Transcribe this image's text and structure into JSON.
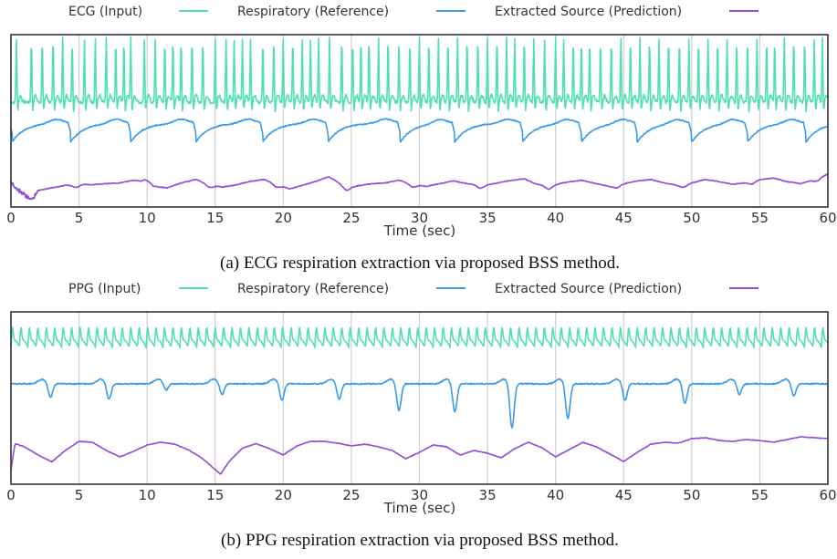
{
  "colors": {
    "ecg": "#4fe0b0",
    "ppg": "#4fe0b0",
    "respiratory": "#3a9be8",
    "extracted": "#8f4fd8",
    "grid": "#d0d0d0",
    "frame": "#333333"
  },
  "panels": [
    {
      "id": "a",
      "caption": "(a) ECG respiration extraction via proposed BSS method.",
      "legend": [
        "ECG (Input)",
        "Respiratory (Reference)",
        "Extracted Source (Prediction)"
      ]
    },
    {
      "id": "b",
      "caption": "(b) PPG respiration extraction via proposed BSS method.",
      "legend": [
        "PPG (Input)",
        "Respiratory (Reference)",
        "Extracted Source (Prediction)"
      ]
    }
  ],
  "chart_data": [
    {
      "type": "line",
      "title": "",
      "xlabel": "Time (sec)",
      "ylabel": "",
      "xlim": [
        0,
        60
      ],
      "xticks": [
        0,
        5,
        10,
        15,
        20,
        25,
        30,
        35,
        40,
        45,
        50,
        55,
        60
      ],
      "grid": true,
      "legend_position": "top",
      "series": [
        {
          "name": "ECG (Input)",
          "kind": "ecg",
          "beat_times": [
            0.4,
            1.5,
            2.3,
            3.1,
            3.8,
            4.5,
            5.4,
            6.2,
            7.0,
            7.7,
            8.3,
            8.8,
            9.8,
            10.6,
            11.3,
            11.9,
            12.5,
            13.3,
            14.1,
            15.0,
            15.8,
            16.4,
            17.0,
            17.6,
            18.5,
            19.3,
            20.0,
            20.7,
            21.4,
            22.0,
            22.6,
            23.4,
            24.3,
            25.1,
            25.7,
            26.3,
            27.0,
            27.7,
            28.5,
            29.3,
            30.0,
            30.7,
            31.4,
            32.1,
            32.8,
            33.5,
            34.3,
            35.0,
            35.7,
            36.4,
            37.0,
            37.7,
            38.4,
            39.2,
            40.0,
            40.6,
            41.3,
            41.9,
            42.5,
            43.3,
            44.1,
            44.8,
            45.5,
            46.2,
            46.9,
            47.6,
            48.3,
            49.1,
            49.8,
            50.5,
            51.2,
            51.9,
            52.6,
            53.3,
            54.1,
            54.8,
            55.5,
            56.1,
            56.8,
            57.5,
            58.3,
            59.0,
            59.6
          ],
          "peak_height": 0.78
        },
        {
          "name": "Respiratory (Reference)",
          "kind": "resp",
          "dip_times": [
            0.1,
            4.4,
            8.8,
            13.6,
            18.5,
            23.3,
            28.6,
            32.6,
            37.6,
            41.9,
            46.0,
            50.0,
            54.1,
            58.4
          ],
          "baseline": 0.45,
          "depth": 0.55
        },
        {
          "name": "Extracted Source (Prediction)",
          "kind": "extracted",
          "x": [
            0,
            0.5,
            1.0,
            1.5,
            2.0,
            3.0,
            4.0,
            5.0,
            6.0,
            7.0,
            8.0,
            9.0,
            9.8,
            10.5,
            11.5,
            12.5,
            13.6,
            14.5,
            15.5,
            16.5,
            17.5,
            18.6,
            19.5,
            20.5,
            21.5,
            22.5,
            23.3,
            24.0,
            24.7,
            25.5,
            26.5,
            27.5,
            28.5,
            29.5,
            30.5,
            31.5,
            32.5,
            33.5,
            34.5,
            35.5,
            36.5,
            37.7,
            38.5,
            39.5,
            40.5,
            41.9,
            43.0,
            44.0,
            45.0,
            46.0,
            47.0,
            48.0,
            49.0,
            50.0,
            51.0,
            52.0,
            53.0,
            54.1,
            55.0,
            56.0,
            57.0,
            58.0,
            58.8,
            59.5,
            60.0
          ],
          "y": [
            -0.25,
            -0.48,
            -0.62,
            -0.78,
            -0.5,
            -0.42,
            -0.35,
            -0.32,
            -0.33,
            -0.3,
            -0.28,
            -0.2,
            -0.12,
            -0.38,
            -0.42,
            -0.28,
            -0.18,
            -0.32,
            -0.4,
            -0.34,
            -0.24,
            -0.18,
            -0.32,
            -0.45,
            -0.34,
            -0.22,
            -0.1,
            -0.25,
            -0.42,
            -0.36,
            -0.3,
            -0.28,
            -0.2,
            -0.32,
            -0.38,
            -0.3,
            -0.22,
            -0.3,
            -0.35,
            -0.3,
            -0.22,
            -0.16,
            -0.3,
            -0.38,
            -0.28,
            -0.2,
            -0.3,
            -0.38,
            -0.3,
            -0.22,
            -0.18,
            -0.28,
            -0.35,
            -0.28,
            -0.18,
            -0.24,
            -0.32,
            -0.26,
            -0.18,
            -0.14,
            -0.24,
            -0.3,
            -0.2,
            -0.1,
            -0.02
          ],
          "peak_dips": [
            4.8,
            9.6,
            14.6,
            19.5,
            24.6,
            29.5,
            34.5,
            39.5,
            44.5,
            49.4,
            54.4,
            59.2
          ]
        }
      ]
    },
    {
      "type": "line",
      "title": "",
      "xlabel": "Time (sec)",
      "ylabel": "",
      "xlim": [
        0,
        60
      ],
      "xticks": [
        0,
        5,
        10,
        15,
        20,
        25,
        30,
        35,
        40,
        45,
        50,
        55,
        60
      ],
      "grid": true,
      "legend_position": "top",
      "series": [
        {
          "name": "PPG (Input)",
          "kind": "ppg",
          "period": 0.62,
          "amplitude": 0.55
        },
        {
          "name": "Respiratory (Reference)",
          "kind": "resp2",
          "dip_times": [
            2.9,
            7.2,
            11.4,
            15.5,
            19.9,
            24.1,
            28.5,
            32.6,
            36.8,
            40.9,
            45.1,
            49.5,
            53.5,
            57.5
          ],
          "dip_depths": [
            0.25,
            0.28,
            0.12,
            0.2,
            0.3,
            0.28,
            0.48,
            0.5,
            0.78,
            0.62,
            0.3,
            0.35,
            0.2,
            0.22
          ],
          "baseline": 0.05
        },
        {
          "name": "Extracted Source (Prediction)",
          "kind": "extracted2",
          "x": [
            0,
            0.3,
            1.0,
            2.0,
            3.0,
            4.0,
            5.0,
            6.0,
            7.0,
            8.0,
            9.0,
            10.0,
            11.0,
            12.0,
            13.0,
            14.0,
            15.0,
            15.4,
            16.0,
            17.0,
            18.0,
            19.0,
            20.0,
            21.0,
            22.0,
            23.0,
            24.0,
            25.0,
            26.0,
            27.0,
            28.0,
            29.0,
            30.0,
            31.0,
            32.0,
            33.0,
            34.0,
            35.0,
            36.0,
            37.0,
            38.0,
            39.0,
            40.0,
            41.0,
            42.0,
            43.0,
            44.0,
            45.0,
            46.0,
            47.0,
            48.0,
            49.0,
            50.0,
            51.0,
            52.0,
            53.0,
            54.0,
            55.0,
            56.0,
            57.0,
            58.0,
            59.0,
            60.0
          ],
          "y": [
            -0.62,
            -0.05,
            -0.12,
            -0.3,
            -0.45,
            -0.2,
            0.0,
            -0.02,
            -0.2,
            -0.34,
            -0.22,
            -0.08,
            -0.02,
            -0.06,
            -0.18,
            -0.36,
            -0.62,
            -0.72,
            -0.45,
            -0.15,
            -0.05,
            -0.16,
            -0.3,
            -0.1,
            0.0,
            0.0,
            -0.04,
            -0.1,
            -0.06,
            -0.12,
            -0.2,
            -0.38,
            -0.24,
            -0.08,
            -0.12,
            -0.3,
            -0.2,
            -0.26,
            -0.36,
            -0.16,
            -0.02,
            -0.14,
            -0.34,
            -0.18,
            -0.02,
            -0.12,
            -0.28,
            -0.44,
            -0.24,
            -0.06,
            -0.02,
            -0.04,
            0.06,
            0.08,
            0.02,
            0.0,
            0.04,
            0.02,
            -0.02,
            0.04,
            0.1,
            0.08,
            0.06
          ]
        }
      ]
    }
  ]
}
